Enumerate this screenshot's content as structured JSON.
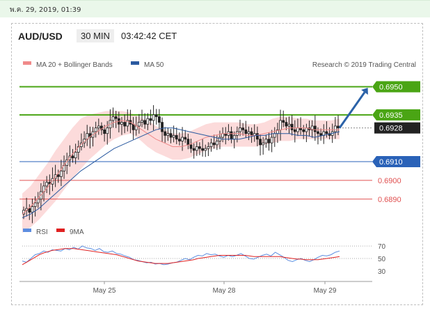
{
  "header": {
    "datetime": "พ.ค. 29, 2019, 01:39",
    "symbol": "AUD/USD",
    "timeframe": "30 MIN",
    "clock": "03:42:42 CET"
  },
  "legend": {
    "ma20": "MA 20 + Bollinger Bands",
    "ma50": "MA 50",
    "credit": "Research © 2019 Trading Central",
    "rsi": "RSI",
    "ma9": "9MA"
  },
  "colors": {
    "green": "#4aa514",
    "blue_line": "#2a62b8",
    "red_line": "#e05050",
    "candle": "#222222",
    "band": "#fbd5d5",
    "last_price": "#222222",
    "ma50": "#2a5aa0",
    "arrow": "#2b62a8"
  },
  "chart_data": [
    {
      "type": "candlestick",
      "title": "AUD/USD",
      "timeframe": "30 MIN",
      "x_ticks": [
        "May 25",
        "May 28",
        "May 29"
      ],
      "ylim": [
        0.6878,
        0.6958
      ],
      "levels": [
        {
          "value": 0.695,
          "label": "0.6950",
          "kind": "resistance",
          "color": "#4aa514"
        },
        {
          "value": 0.6935,
          "label": "0.6935",
          "kind": "resistance",
          "color": "#4aa514"
        },
        {
          "value": 0.6928,
          "label": "0.6928",
          "kind": "last",
          "color": "#222222"
        },
        {
          "value": 0.691,
          "label": "0.6910",
          "kind": "pivot",
          "color": "#2a62b8"
        },
        {
          "value": 0.69,
          "label": "0.6900",
          "kind": "support",
          "color": "#e05050"
        },
        {
          "value": 0.689,
          "label": "0.6890",
          "kind": "support",
          "color": "#e05050"
        }
      ],
      "close": [
        0.6884,
        0.6885,
        0.6883,
        0.6886,
        0.6888,
        0.689,
        0.6894,
        0.6897,
        0.6899,
        0.6898,
        0.6901,
        0.6903,
        0.6902,
        0.6905,
        0.6908,
        0.6911,
        0.6913,
        0.6912,
        0.6915,
        0.6918,
        0.692,
        0.6922,
        0.6925,
        0.6923,
        0.6926,
        0.6928,
        0.6929,
        0.6927,
        0.6925,
        0.6928,
        0.6932,
        0.6934,
        0.6933,
        0.693,
        0.6931,
        0.6929,
        0.6932,
        0.693,
        0.6927,
        0.6929,
        0.6931,
        0.6932,
        0.693,
        0.6933,
        0.6932,
        0.6935,
        0.6934,
        0.6931,
        0.6926,
        0.6924,
        0.6925,
        0.6923,
        0.6924,
        0.6922,
        0.6921,
        0.6923,
        0.6922,
        0.6919,
        0.6917,
        0.6916,
        0.6918,
        0.6917,
        0.6916,
        0.6917,
        0.6918,
        0.692,
        0.6919,
        0.6921,
        0.6923,
        0.6925,
        0.6924,
        0.6926,
        0.6922,
        0.6924,
        0.6926,
        0.6928,
        0.6927,
        0.6925,
        0.6926,
        0.6924,
        0.6925,
        0.6922,
        0.6919,
        0.692,
        0.6922,
        0.692,
        0.6923,
        0.6925,
        0.6927,
        0.6932,
        0.6931,
        0.6929,
        0.693,
        0.6927,
        0.6926,
        0.6928,
        0.6927,
        0.6926,
        0.6928,
        0.6927,
        0.6929,
        0.6926,
        0.6925,
        0.6924,
        0.6926,
        0.6925,
        0.6924,
        0.6926,
        0.6929,
        0.6928
      ],
      "ma50": [
        0.688,
        0.6882,
        0.6885,
        0.6889,
        0.6893,
        0.6897,
        0.6901,
        0.6905,
        0.6908,
        0.6911,
        0.6914,
        0.6917,
        0.6919,
        0.6921,
        0.6923,
        0.6925,
        0.6927,
        0.6928,
        0.6928,
        0.6927,
        0.6926,
        0.6925,
        0.6924,
        0.6923,
        0.6922,
        0.6922,
        0.6922,
        0.6923,
        0.6924,
        0.6924,
        0.6925,
        0.6925,
        0.6925,
        0.6924,
        0.6924,
        0.6923,
        0.6924,
        0.6925,
        0.6926
      ],
      "ma20": [
        0.6882,
        0.6886,
        0.6891,
        0.6896,
        0.6902,
        0.6908,
        0.6914,
        0.6919,
        0.6923,
        0.6926,
        0.6929,
        0.6931,
        0.6932,
        0.6931,
        0.6928,
        0.6925,
        0.6922,
        0.692,
        0.6918,
        0.6918,
        0.6919,
        0.6921,
        0.6923,
        0.6924,
        0.6925,
        0.6925,
        0.6925,
        0.6924,
        0.6924,
        0.6925,
        0.6926,
        0.6927,
        0.6928,
        0.6928,
        0.6928,
        0.6927,
        0.6927,
        0.6927,
        0.6927
      ],
      "band_upper": [
        0.6893,
        0.6897,
        0.6903,
        0.6909,
        0.6916,
        0.6922,
        0.6928,
        0.6933,
        0.6935,
        0.6936,
        0.6937,
        0.6937,
        0.6937,
        0.6936,
        0.6934,
        0.6932,
        0.6929,
        0.6927,
        0.6925,
        0.6925,
        0.6926,
        0.6928,
        0.693,
        0.6931,
        0.6931,
        0.6931,
        0.6931,
        0.693,
        0.693,
        0.6931,
        0.6933,
        0.6934,
        0.6934,
        0.6933,
        0.6933,
        0.6932,
        0.6932,
        0.6932,
        0.6933
      ],
      "band_lower": [
        0.6872,
        0.6875,
        0.6879,
        0.6884,
        0.6889,
        0.6895,
        0.6901,
        0.6906,
        0.6911,
        0.6915,
        0.6919,
        0.6922,
        0.6924,
        0.6925,
        0.6922,
        0.6918,
        0.6915,
        0.6913,
        0.6911,
        0.6911,
        0.6912,
        0.6914,
        0.6916,
        0.6917,
        0.6918,
        0.6918,
        0.6918,
        0.6918,
        0.6918,
        0.6919,
        0.692,
        0.6921,
        0.6921,
        0.6922,
        0.6922,
        0.6922,
        0.6922,
        0.6922,
        0.6922
      ],
      "projection": {
        "from": 0.6928,
        "to": 0.695
      }
    },
    {
      "type": "line",
      "name": "RSI",
      "ylim": [
        22,
        78
      ],
      "yticks": [
        70,
        50,
        30
      ],
      "series": [
        {
          "name": "RSI",
          "values": [
            46,
            44,
            50,
            56,
            58,
            62,
            60,
            64,
            63,
            62,
            66,
            64,
            68,
            65,
            70,
            67,
            66,
            63,
            66,
            61,
            60,
            62,
            58,
            57,
            54,
            52,
            48,
            47,
            45,
            43,
            44,
            41,
            42,
            40,
            41,
            43,
            44,
            47,
            50,
            48,
            52,
            55,
            54,
            58,
            56,
            57,
            54,
            52,
            55,
            53,
            55,
            58,
            54,
            50,
            49,
            52,
            55,
            57,
            54,
            60,
            56,
            52,
            47,
            45,
            48,
            50,
            47,
            45,
            48,
            52,
            55,
            54,
            56,
            60,
            62
          ]
        },
        {
          "name": "9MA",
          "values": [
            40,
            44,
            48,
            52,
            56,
            59,
            61,
            63,
            64,
            65,
            66,
            66,
            66,
            65,
            64,
            63,
            62,
            61,
            60,
            59,
            58,
            57,
            56,
            54,
            52,
            50,
            48,
            46,
            45,
            44,
            43,
            42,
            42,
            42,
            42,
            43,
            44,
            45,
            46,
            47,
            48,
            50,
            51,
            52,
            53,
            54,
            55,
            55,
            55,
            55,
            55,
            55,
            55,
            54,
            53,
            53,
            53,
            53,
            53,
            53,
            53,
            52,
            51,
            50,
            49,
            49,
            48,
            48,
            48,
            48,
            49,
            50,
            51,
            52,
            53
          ]
        }
      ]
    }
  ]
}
